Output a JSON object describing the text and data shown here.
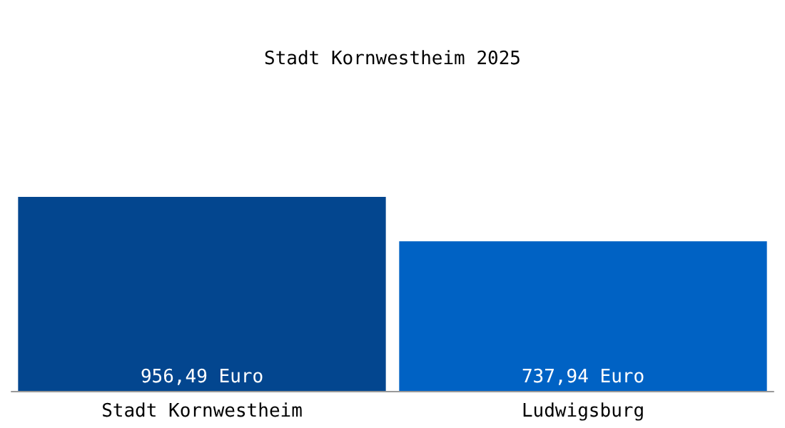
{
  "chart_data": {
    "type": "bar",
    "title": "Stadt Kornwestheim 2025",
    "categories": [
      "Stadt Kornwestheim",
      "Ludwigsburg"
    ],
    "values": [
      956.49,
      737.94
    ],
    "colors": [
      "#03468f",
      "#0062c4"
    ],
    "value_labels": [
      "956,49 Euro",
      "737,94 Euro"
    ]
  }
}
